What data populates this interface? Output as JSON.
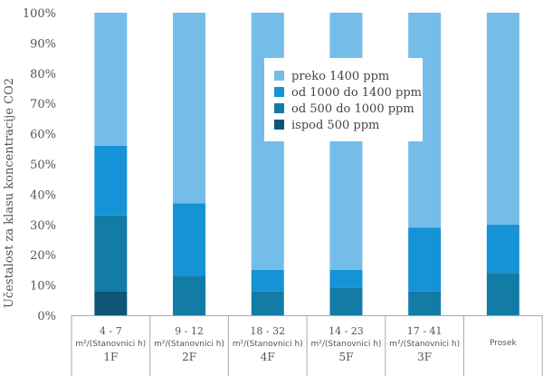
{
  "chart_data": {
    "type": "bar",
    "stacked": true,
    "ylabel": "Učestalost za klasu koncentracije CO2",
    "ylim": [
      0,
      100
    ],
    "y_ticks": [
      "0%",
      "10%",
      "20%",
      "30%",
      "40%",
      "50%",
      "60%",
      "70%",
      "80%",
      "90%",
      "100%"
    ],
    "categories": [
      {
        "range": "4 - 7",
        "unit": "m²/(Stanovnici h)",
        "group": "1F"
      },
      {
        "range": "9 - 12",
        "unit": "m²/(Stanovnici h)",
        "group": "2F"
      },
      {
        "range": "18 - 32",
        "unit": "m²/(Stanovnici h)",
        "group": "4F"
      },
      {
        "range": "14 - 23",
        "unit": "m²/(Stanovnici h)",
        "group": "5F"
      },
      {
        "range": "17 - 41",
        "unit": "m²/(Stanovnici h)",
        "group": "3F"
      },
      {
        "range": "",
        "unit": "Prosek",
        "group": ""
      }
    ],
    "series": [
      {
        "name": "ispod 500 ppm",
        "color": "#0e5577",
        "values": [
          8,
          0,
          0,
          0,
          0,
          0
        ]
      },
      {
        "name": "od 500 do 1000 ppm",
        "color": "#127ba6",
        "values": [
          25,
          13,
          8,
          9,
          8,
          14
        ]
      },
      {
        "name": "od 1000 do 1400 ppm",
        "color": "#1593d6",
        "values": [
          23,
          24,
          7,
          6,
          21,
          16
        ]
      },
      {
        "name": "preko 1400 ppm",
        "color": "#73bde8",
        "values": [
          44,
          63,
          85,
          85,
          71,
          70
        ]
      }
    ],
    "legend_order": [
      3,
      2,
      1,
      0
    ],
    "legend_position": "top-right",
    "grid": false
  }
}
